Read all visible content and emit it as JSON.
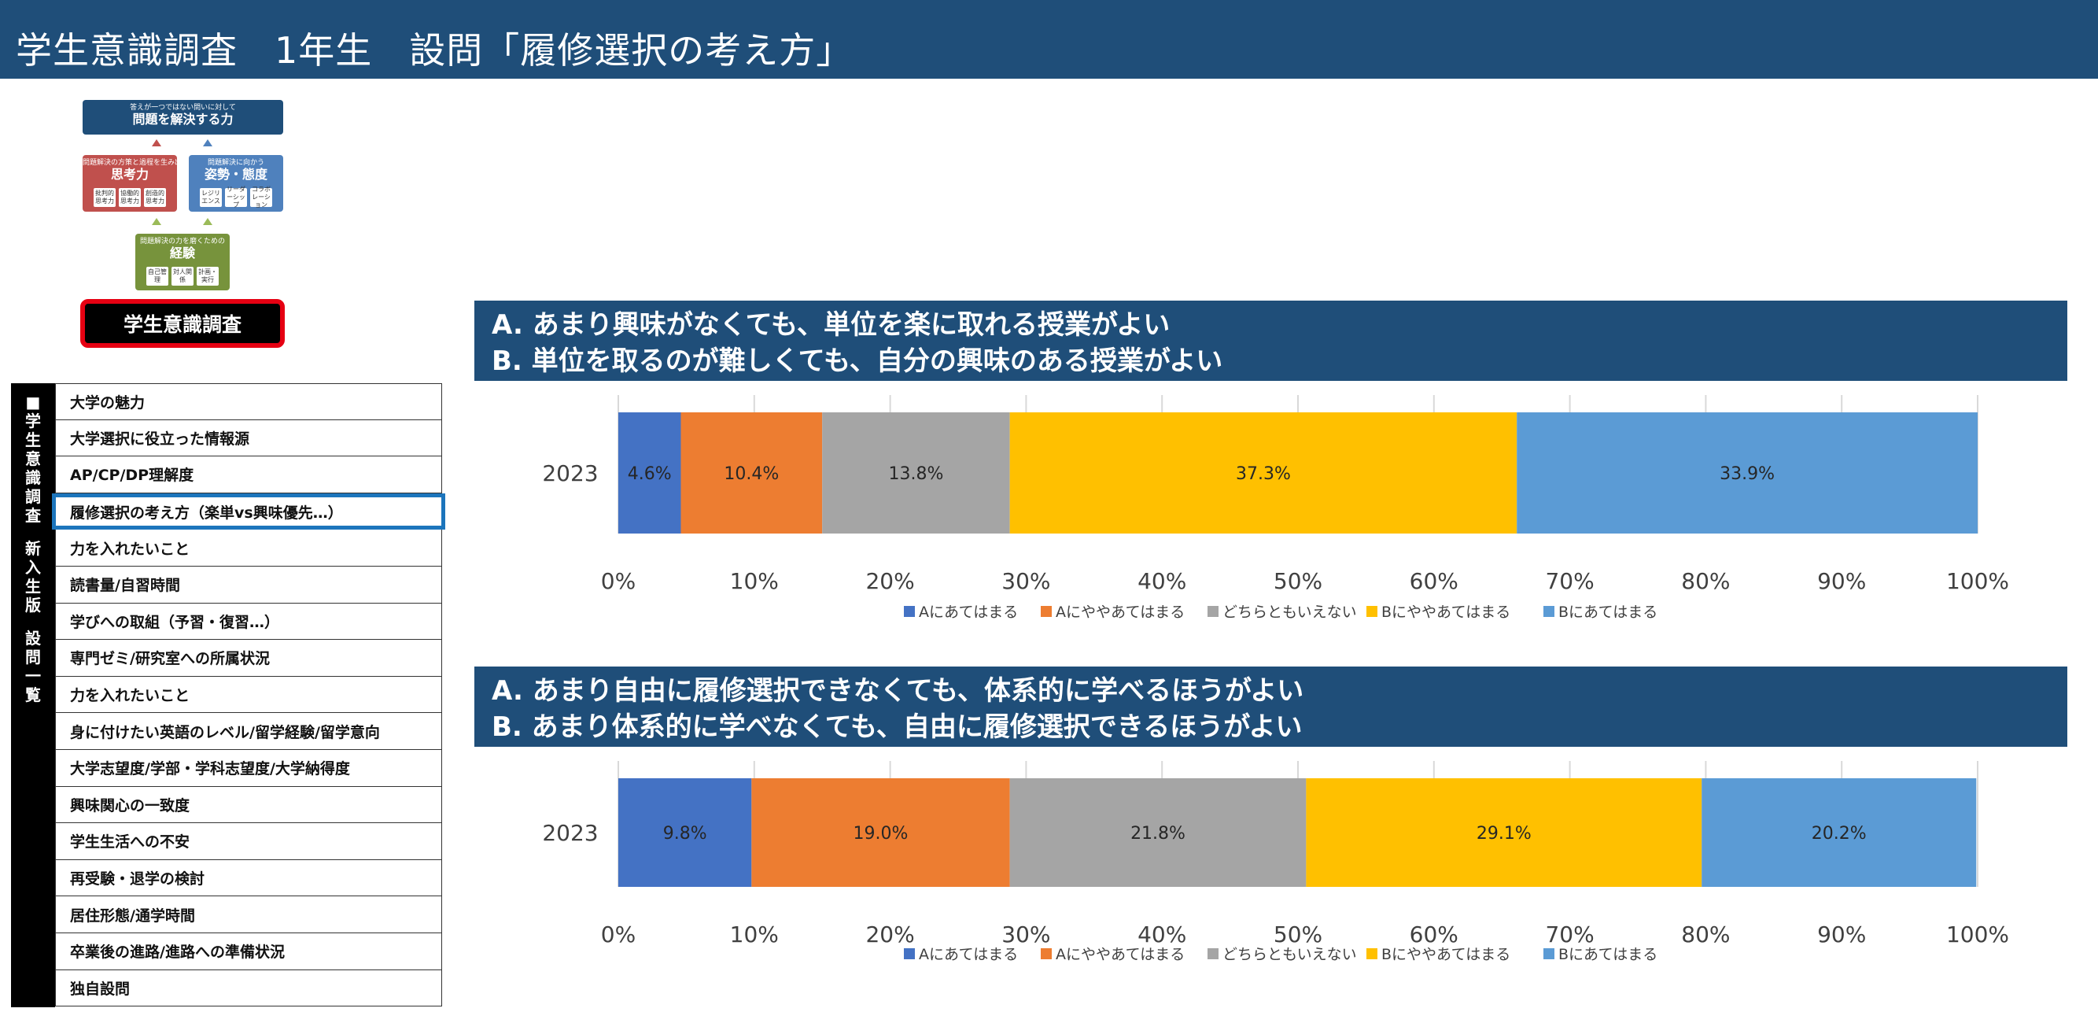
{
  "header": {
    "title": "学生意識調査　1年生　設問「履修選択の考え方」"
  },
  "diagram": {
    "top": {
      "small": "答えが一つではない問いに対して",
      "big": "問題を解決する力"
    },
    "left": {
      "small": "問題解決の方策と過程を生み出す",
      "big": "思考力",
      "items": [
        "批判的思考力",
        "協働的思考力",
        "創造的思考力"
      ]
    },
    "right": {
      "small": "問題解決に向かう",
      "big": "姿勢・態度",
      "items": [
        "レジリエンス",
        "リーダーシップ",
        "コラボレーション"
      ]
    },
    "bottom": {
      "small": "問題解決の力を磨くための",
      "big": "経験",
      "items": [
        "自己管理",
        "対人関係",
        "計画・実行"
      ]
    },
    "badge": "学生意識調査"
  },
  "sidebar": {
    "vertical_label": [
      "■",
      "学",
      "生",
      "意",
      "識",
      "調",
      "査",
      "",
      "新",
      "入",
      "生",
      "版",
      "",
      "設",
      "問",
      "一",
      "覧"
    ],
    "items": [
      "大学の魅力",
      "大学選択に役立った情報源",
      "AP/CP/DP理解度",
      "履修選択の考え方（楽単vs興味優先…）",
      "力を入れたいこと",
      "読書量/自習時間",
      "学びへの取組（予習・復習…）",
      "専門ゼミ/研究室への所属状況",
      "力を入れたいこと",
      "身に付けたい英語のレベル/留学経験/留学意向",
      "大学志望度/学部・学科志望度/大学納得度",
      "興味関心の一致度",
      "学生生活への不安",
      "再受験・退学の検討",
      "居住形態/通学時間",
      "卒業後の進路/進路への準備状況",
      "独自設問"
    ],
    "active_index": 3
  },
  "questions": [
    {
      "line_a": "A. あまり興味がなくても、単位を楽に取れる授業がよい",
      "line_b": "B. 単位を取るのが難しくても、自分の興味のある授業がよい"
    },
    {
      "line_a": "A. あまり自由に履修選択できなくても、体系的に学べるほうがよい",
      "line_b": "B. あまり体系的に学べなくても、自由に履修選択できるほうがよい"
    }
  ],
  "chart_data": [
    {
      "type": "bar",
      "orientation": "horizontal-stacked-100",
      "categories": [
        "2023"
      ],
      "series": [
        {
          "name": "Aにあてはまる",
          "values": [
            4.6
          ],
          "color": "#4472c4"
        },
        {
          "name": "Aにややあてはまる",
          "values": [
            10.4
          ],
          "color": "#ed7d31"
        },
        {
          "name": "どちらともいえない",
          "values": [
            13.8
          ],
          "color": "#a5a5a5"
        },
        {
          "name": "Bにややあてはまる",
          "values": [
            37.3
          ],
          "color": "#ffc000"
        },
        {
          "name": "Bにあてはまる",
          "values": [
            33.9
          ],
          "color": "#5b9bd5"
        }
      ],
      "xlim": [
        0,
        100
      ],
      "xticks": [
        "0%",
        "10%",
        "20%",
        "30%",
        "40%",
        "50%",
        "60%",
        "70%",
        "80%",
        "90%",
        "100%"
      ],
      "grid": true,
      "legend": "bottom"
    },
    {
      "type": "bar",
      "orientation": "horizontal-stacked-100",
      "categories": [
        "2023"
      ],
      "series": [
        {
          "name": "Aにあてはまる",
          "values": [
            9.8
          ],
          "color": "#4472c4"
        },
        {
          "name": "Aにややあてはまる",
          "values": [
            19.0
          ],
          "color": "#ed7d31"
        },
        {
          "name": "どちらともいえない",
          "values": [
            21.8
          ],
          "color": "#a5a5a5"
        },
        {
          "name": "Bにややあてはまる",
          "values": [
            29.1
          ],
          "color": "#ffc000"
        },
        {
          "name": "Bにあてはまる",
          "values": [
            20.2
          ],
          "color": "#5b9bd5"
        }
      ],
      "xlim": [
        0,
        100
      ],
      "xticks": [
        "0%",
        "10%",
        "20%",
        "30%",
        "40%",
        "50%",
        "60%",
        "70%",
        "80%",
        "90%",
        "100%"
      ],
      "grid": true,
      "legend": "bottom"
    }
  ]
}
